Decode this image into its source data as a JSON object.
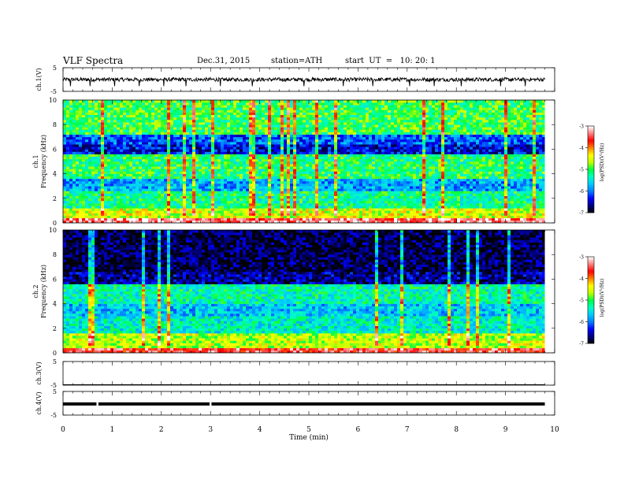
{
  "header": {
    "title": "VLF Spectra",
    "date": "Dec.31, 2015",
    "station": "station=ATH",
    "start": "start  UT  =   10: 20: 1"
  },
  "colors": {
    "colormap": [
      "#000000",
      "#000080",
      "#0000ff",
      "#0080ff",
      "#00c8ff",
      "#00ffc0",
      "#00ff40",
      "#c0ff00",
      "#ffff00",
      "#ff8000",
      "#ff0000",
      "#ff8080",
      "#ffffff"
    ],
    "trace": "#000000"
  },
  "chart_data": [
    {
      "type": "line",
      "panel": "ch1-waveform",
      "ylabel": "ch.1(V)",
      "ylim": [
        -5,
        5
      ],
      "ytick_labels": [
        "-5",
        "5"
      ],
      "x_unit": "min",
      "xlim": [
        0,
        9.8
      ],
      "baseline": 0,
      "visible_dips_x": [
        0.15,
        0.55,
        1.05,
        1.55,
        2.05,
        2.5,
        3.2,
        3.85,
        4.9,
        5.7,
        6.3,
        7.05,
        7.55,
        8.1,
        8.9,
        9.4
      ],
      "grid": false
    },
    {
      "type": "heatmap",
      "panel": "ch1-spectrogram",
      "ylabel_top": "ch.1",
      "ylabel": "Frequency  (kHz)",
      "ylim": [
        0,
        10
      ],
      "ytick_labels": [
        "0",
        "2",
        "4",
        "6",
        "8",
        "10"
      ],
      "xlim": [
        0,
        9.8
      ],
      "colorbar": {
        "label": "log(PSD)(V²/Hz)",
        "range": [
          -7,
          -3
        ],
        "tick_labels": [
          "-3",
          "-4",
          "-5",
          "-6",
          "-7"
        ]
      },
      "band_levels": [
        {
          "f_range": [
            0,
            0.3
          ],
          "level": -3.3
        },
        {
          "f_range": [
            0.3,
            1.2
          ],
          "level": -4.5
        },
        {
          "f_range": [
            1.2,
            2.5
          ],
          "level": -5.2
        },
        {
          "f_range": [
            2.5,
            3.5
          ],
          "level": -5.8
        },
        {
          "f_range": [
            3.5,
            5.5
          ],
          "level": -5.1
        },
        {
          "f_range": [
            5.5,
            6.4
          ],
          "level": -6.4
        },
        {
          "f_range": [
            6.4,
            7.2
          ],
          "level": -6.1
        },
        {
          "f_range": [
            7.2,
            10
          ],
          "level": -5.0
        }
      ]
    },
    {
      "type": "heatmap",
      "panel": "ch2-spectrogram",
      "ylabel_top": "ch.2",
      "ylabel": "Frequency  (kHz)",
      "ylim": [
        0,
        10
      ],
      "ytick_labels": [
        "0",
        "2",
        "4",
        "6",
        "8",
        "10"
      ],
      "xlim": [
        0,
        9.8
      ],
      "colorbar": {
        "label": "log(PSD)(V²/Hz)",
        "range": [
          -7,
          -3
        ],
        "tick_labels": [
          "-3",
          "-4",
          "-5",
          "-6",
          "-7"
        ]
      },
      "band_levels": [
        {
          "f_range": [
            0,
            0.3
          ],
          "level": -3.5
        },
        {
          "f_range": [
            0.3,
            1.5
          ],
          "level": -4.6
        },
        {
          "f_range": [
            1.5,
            3.0
          ],
          "level": -5.4
        },
        {
          "f_range": [
            3.0,
            4.0
          ],
          "level": -5.7
        },
        {
          "f_range": [
            4.0,
            5.5
          ],
          "level": -5.3
        },
        {
          "f_range": [
            5.5,
            6.5
          ],
          "level": -6.6
        },
        {
          "f_range": [
            6.5,
            10
          ],
          "level": -6.8
        }
      ]
    },
    {
      "type": "line",
      "panel": "ch3-waveform",
      "ylabel": "ch.3(V)",
      "ylim": [
        -5,
        5
      ],
      "ytick_labels": [
        "-5",
        "5"
      ],
      "xlim": [
        0,
        9.8
      ],
      "baseline": -5
    },
    {
      "type": "line",
      "panel": "ch4-waveform",
      "ylabel": "ch.4(V)",
      "ylim": [
        -5,
        5
      ],
      "ytick_labels": [
        "-5",
        "5"
      ],
      "xlim": [
        0,
        9.8
      ],
      "baseline": -0.3,
      "gaps_x": [
        0.7,
        3.0
      ]
    }
  ],
  "x_axis": {
    "label": "Time  (min)",
    "range": [
      0,
      10
    ],
    "tick_labels": [
      "0",
      "1",
      "2",
      "3",
      "4",
      "5",
      "6",
      "7",
      "8",
      "9",
      "10"
    ]
  }
}
